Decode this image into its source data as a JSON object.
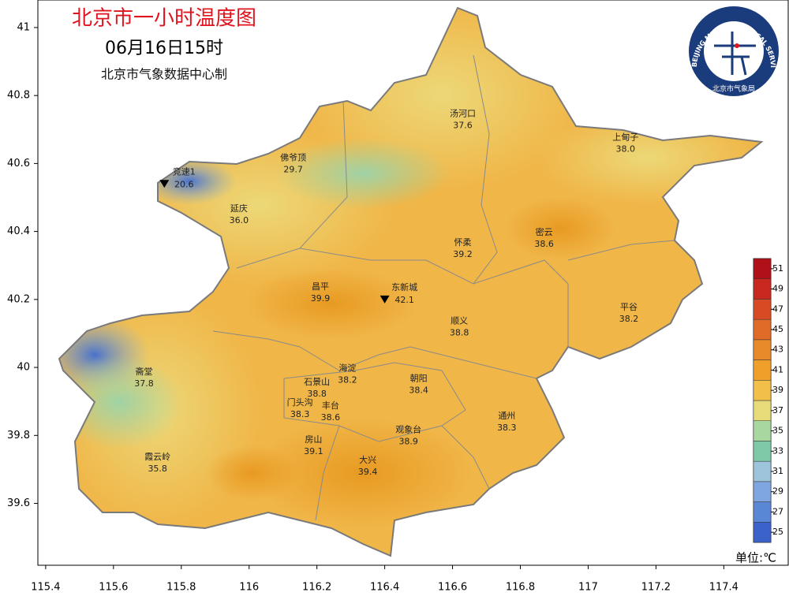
{
  "title": "北京市一小时温度图",
  "subtitle": "06月16日15时",
  "source": "北京市气象数据中心制",
  "logo": {
    "arc_text": "BEIJING METEOROLOGICAL SERVICE",
    "label": "北京市气象局"
  },
  "axes": {
    "xlim": [
      115.377,
      117.59
    ],
    "ylim": [
      39.418,
      41.081
    ],
    "xticks": [
      115.4,
      115.6,
      115.8,
      116,
      116.2,
      116.4,
      116.6,
      116.8,
      117,
      117.2,
      117.4
    ],
    "yticks": [
      39.6,
      39.8,
      40,
      40.2,
      40.4,
      40.6,
      40.8,
      41
    ]
  },
  "stations": [
    {
      "name": "竞速1",
      "value": "20.6",
      "lon": 115.75,
      "lat": 40.54,
      "marker": "triangle"
    },
    {
      "name": "佛爷顶",
      "value": "29.7",
      "lon": 116.13,
      "lat": 40.6
    },
    {
      "name": "汤河口",
      "value": "37.6",
      "lon": 116.63,
      "lat": 40.73
    },
    {
      "name": "上甸子",
      "value": "38.0",
      "lon": 117.11,
      "lat": 40.66
    },
    {
      "name": "延庆",
      "value": "36.0",
      "lon": 115.97,
      "lat": 40.45
    },
    {
      "name": "怀柔",
      "value": "39.2",
      "lon": 116.63,
      "lat": 40.35
    },
    {
      "name": "密云",
      "value": "38.6",
      "lon": 116.87,
      "lat": 40.38
    },
    {
      "name": "昌平",
      "value": "39.9",
      "lon": 116.21,
      "lat": 40.22
    },
    {
      "name": "东新城",
      "value": "42.1",
      "lon": 116.4,
      "lat": 40.2,
      "marker": "triangle"
    },
    {
      "name": "平谷",
      "value": "38.2",
      "lon": 117.12,
      "lat": 40.16
    },
    {
      "name": "顺义",
      "value": "38.8",
      "lon": 116.62,
      "lat": 40.12
    },
    {
      "name": "斋堂",
      "value": "37.8",
      "lon": 115.69,
      "lat": 39.97
    },
    {
      "name": "海淀",
      "value": "38.2",
      "lon": 116.29,
      "lat": 39.98
    },
    {
      "name": "石景山",
      "value": "38.8",
      "lon": 116.2,
      "lat": 39.94
    },
    {
      "name": "朝阳",
      "value": "38.4",
      "lon": 116.5,
      "lat": 39.95
    },
    {
      "name": "门头沟",
      "value": "38.3",
      "lon": 116.15,
      "lat": 39.88
    },
    {
      "name": "丰台",
      "value": "38.6",
      "lon": 116.24,
      "lat": 39.87
    },
    {
      "name": "通州",
      "value": "38.3",
      "lon": 116.76,
      "lat": 39.84
    },
    {
      "name": "观象台",
      "value": "38.9",
      "lon": 116.47,
      "lat": 39.8
    },
    {
      "name": "房山",
      "value": "39.1",
      "lon": 116.19,
      "lat": 39.77
    },
    {
      "name": "霞云岭",
      "value": "35.8",
      "lon": 115.73,
      "lat": 39.72
    },
    {
      "name": "大兴",
      "value": "39.4",
      "lon": 116.35,
      "lat": 39.71
    }
  ],
  "legend": {
    "unit": "单位:℃",
    "lim": [
      24,
      52
    ],
    "ticks": [
      25,
      27,
      29,
      31,
      33,
      35,
      37,
      39,
      41,
      43,
      45,
      47,
      49,
      51
    ],
    "colors": [
      "#3b62c8",
      "#5a86d6",
      "#7fa6e0",
      "#9ec4dc",
      "#7fc9a8",
      "#a8d8a0",
      "#e8dc7a",
      "#f2c04a",
      "#eea02a",
      "#e88a2a",
      "#e06a28",
      "#d84a24",
      "#c8281e",
      "#b01018"
    ]
  }
}
